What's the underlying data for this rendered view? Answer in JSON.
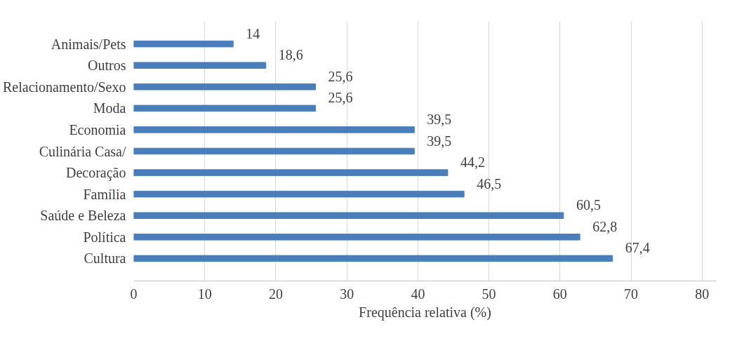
{
  "chart_data": {
    "type": "bar",
    "orientation": "horizontal",
    "xlabel": "Frequência relativa (%)",
    "categories": [
      "Animais/Pets",
      "Outros",
      "Relacionamento/Sexo",
      "Moda",
      "Economia",
      "Culinária Casa/",
      "Decoração",
      "Família",
      "Saúde e Beleza",
      "Política",
      "Cultura"
    ],
    "values": [
      14,
      18.6,
      25.6,
      25.6,
      39.5,
      39.5,
      44.2,
      46.5,
      60.5,
      62.8,
      67.4
    ],
    "color": "#4a7ebb",
    "xlim": [
      0,
      82
    ],
    "xticks": [
      0,
      10,
      20,
      30,
      40,
      50,
      60,
      70,
      80
    ],
    "grid": "x",
    "value_labels": [
      "14",
      "18,6",
      "25,6",
      "25,6",
      "39,5",
      "39,5",
      "44,2",
      "46,5",
      "60,5",
      "62,8",
      "67,4"
    ]
  }
}
